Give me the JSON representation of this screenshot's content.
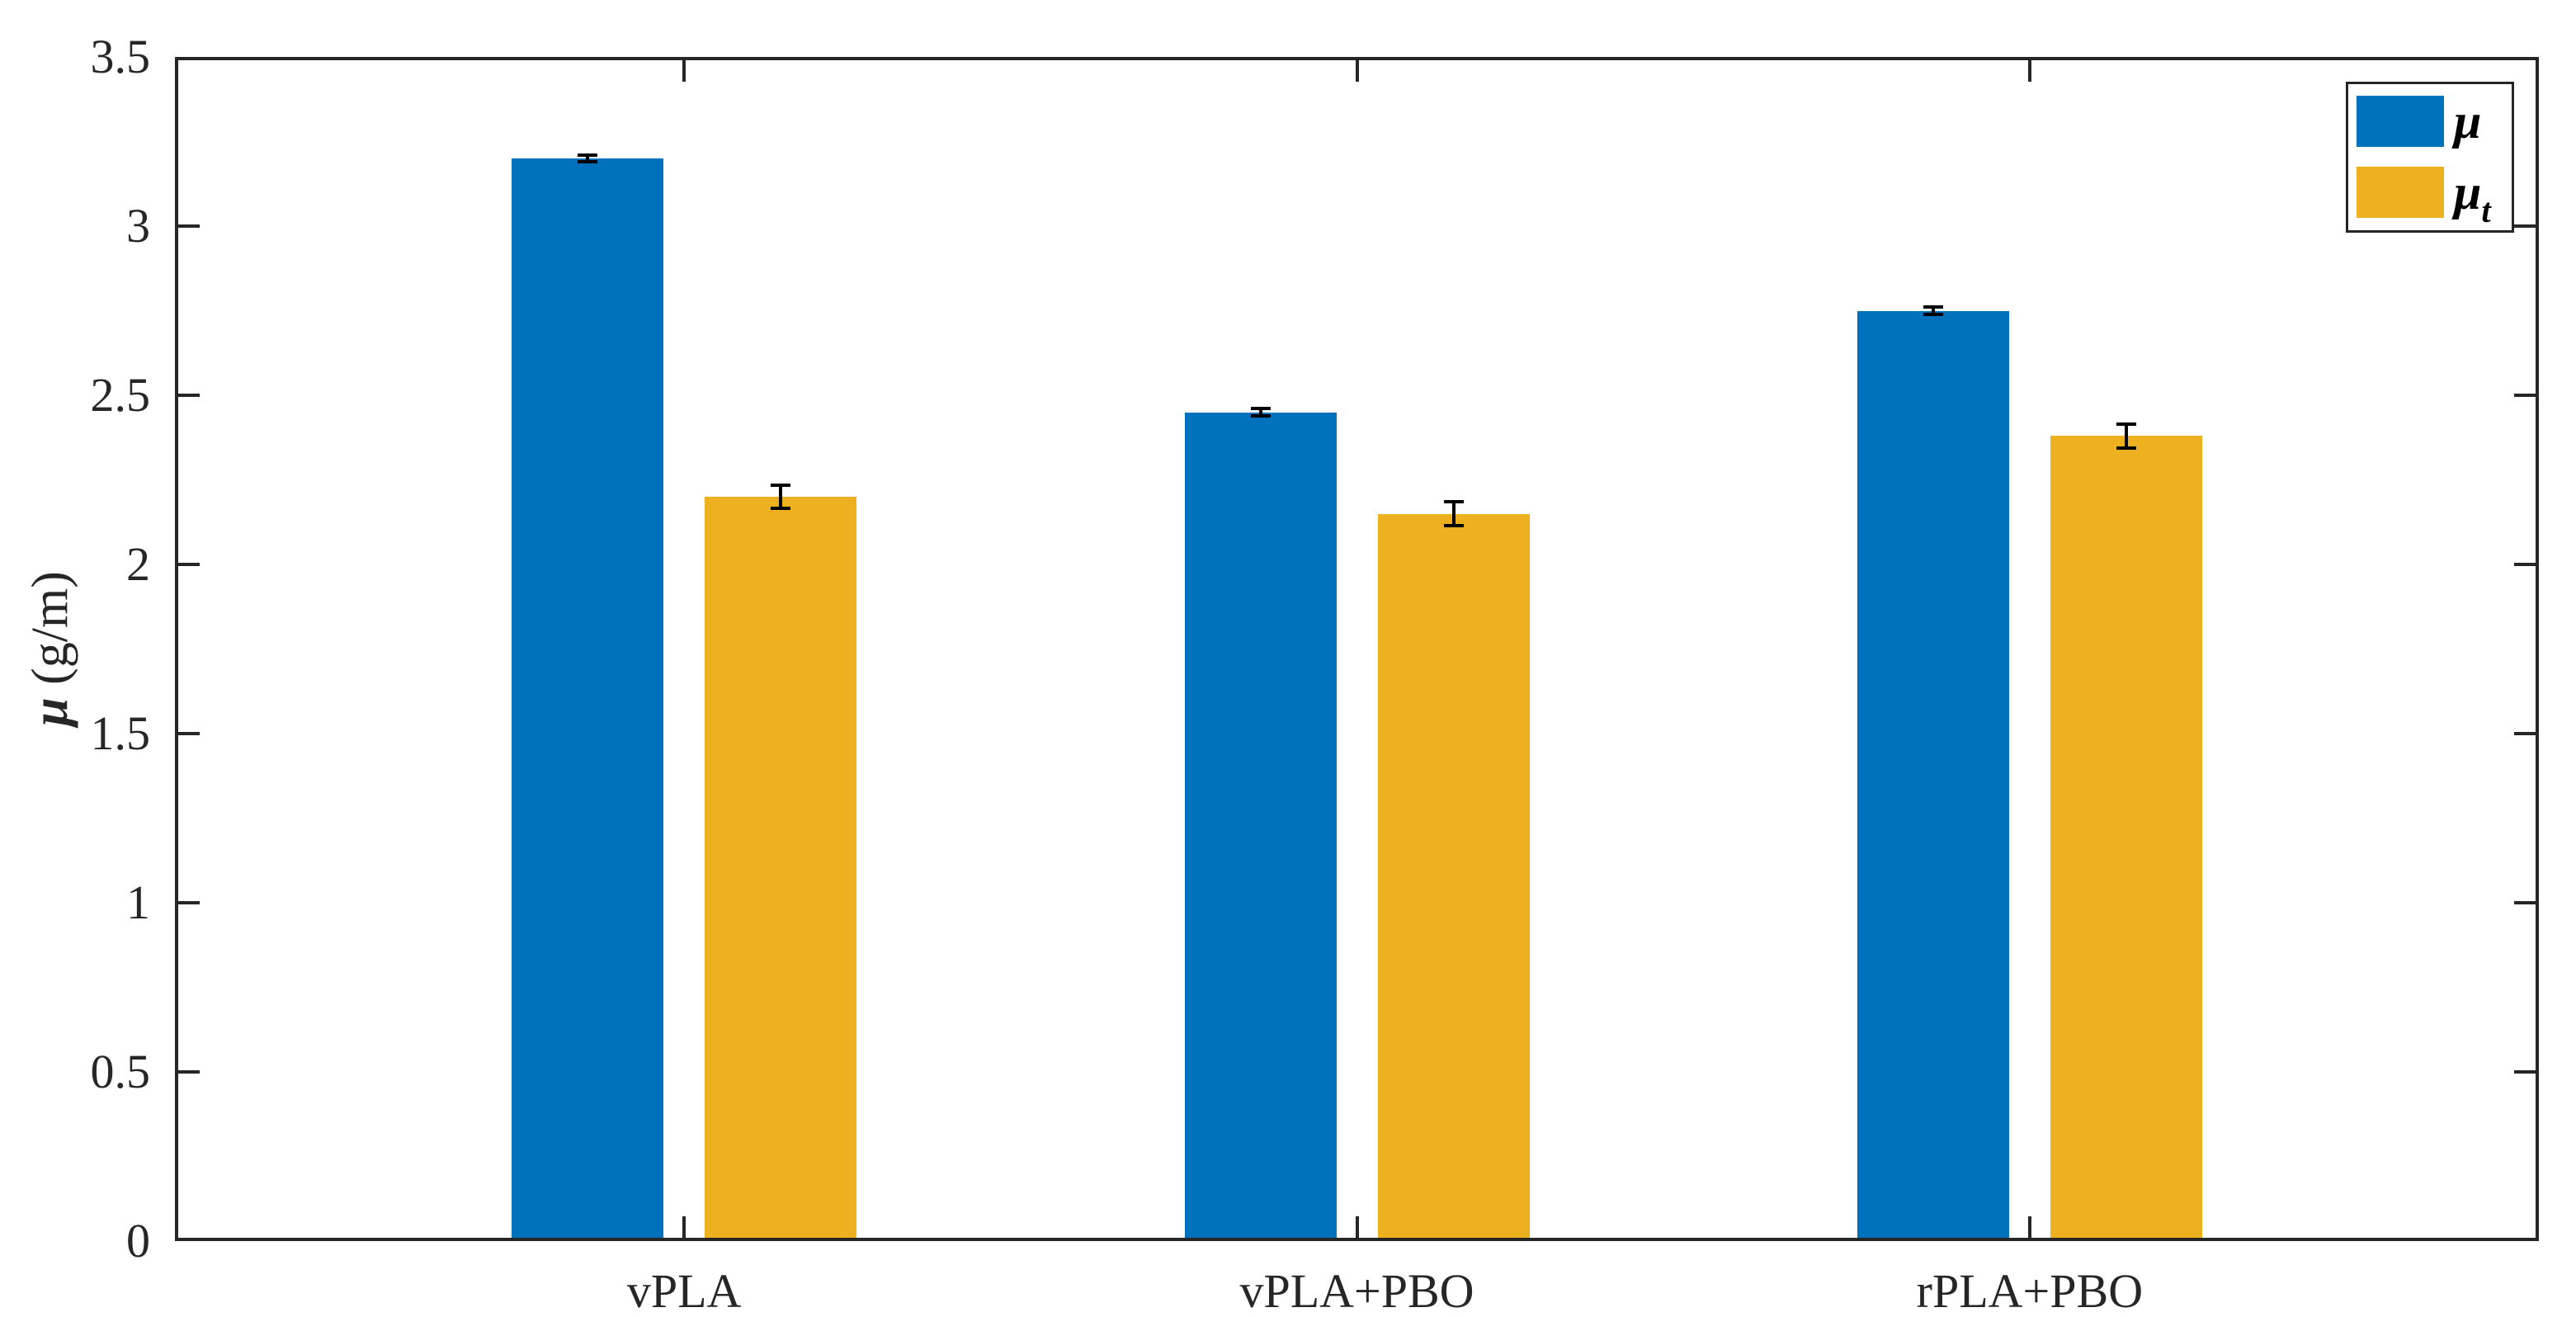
{
  "chart_data": {
    "type": "bar",
    "title": "",
    "categories": [
      "vPLA",
      "vPLA+PBO",
      "rPLA+PBO"
    ],
    "series": [
      {
        "name": "μ",
        "color": "#0072BD",
        "values": [
          3.2,
          2.45,
          2.75
        ],
        "errors": [
          0.01,
          0.01,
          0.01
        ]
      },
      {
        "name": "μt",
        "color": "#EDB120",
        "values": [
          2.2,
          2.15,
          2.38
        ],
        "errors": [
          0.035,
          0.035,
          0.035
        ]
      }
    ],
    "xlabel": "",
    "ylabel": "μ (g/m)",
    "ylim": [
      0,
      3.5
    ],
    "yticks": [
      0,
      0.5,
      1,
      1.5,
      2,
      2.5,
      3,
      3.5
    ],
    "ytick_labels": [
      "0",
      "0.5",
      "1",
      "1.5",
      "2",
      "2.5",
      "3",
      "3.5"
    ],
    "grid": false,
    "legend_position": "top-right",
    "error_bar_color": "#000000"
  },
  "ylabel_parts": {
    "symbol": "μ",
    "rest": " (g/m)"
  },
  "legend": {
    "entries": [
      {
        "symbol": "μ",
        "sub": "",
        "color": "#0072BD"
      },
      {
        "symbol": "μ",
        "sub": "t",
        "color": "#EDB120"
      }
    ]
  },
  "colors": {
    "series_blue": "#0072BD",
    "series_yellow": "#EDB120",
    "axis": "#262626",
    "error_bar": "#000000",
    "background": "#ffffff"
  }
}
